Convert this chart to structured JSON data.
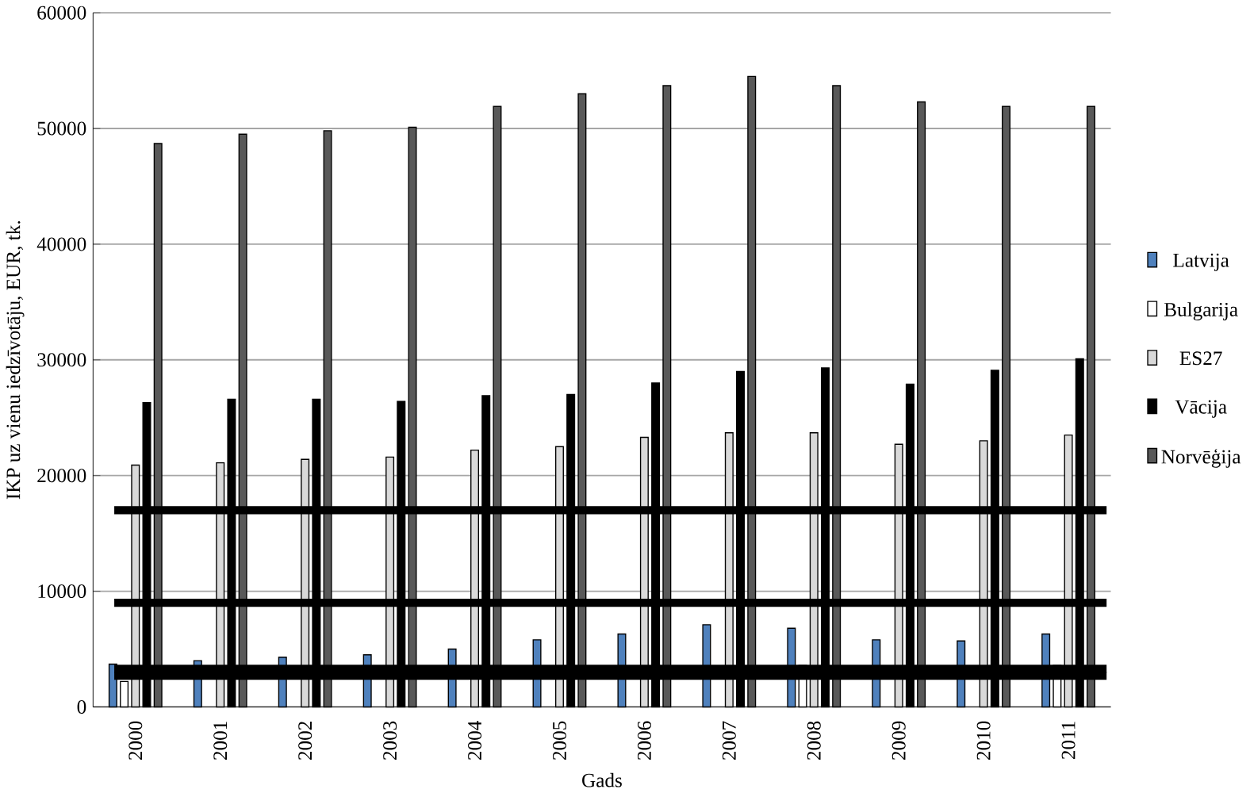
{
  "chart_data": {
    "type": "bar",
    "xlabel": "Gads",
    "ylabel": "IKP uz vienu iedzīvotāju,  EUR, tk.",
    "categories": [
      "2000",
      "2001",
      "2002",
      "2003",
      "2004",
      "2005",
      "2006",
      "2007",
      "2008",
      "2009",
      "2010",
      "2011"
    ],
    "series": [
      {
        "name": "Latvija",
        "color": "#4f81bd",
        "values": [
          3700,
          4000,
          4300,
          4500,
          5000,
          5800,
          6300,
          7100,
          6800,
          5800,
          5700,
          6300
        ]
      },
      {
        "name": "Bulgarija",
        "color": "#ffffff",
        "values": [
          2200,
          null,
          null,
          null,
          null,
          null,
          null,
          null,
          3600,
          null,
          null,
          3600
        ]
      },
      {
        "name": "ES27",
        "color": "#d9d9d9",
        "values": [
          20900,
          21100,
          21400,
          21600,
          22200,
          22500,
          23300,
          23700,
          23700,
          22700,
          23000,
          23500
        ]
      },
      {
        "name": "Vācija",
        "color": "#000000",
        "values": [
          26300,
          26600,
          26600,
          26400,
          26900,
          27000,
          28000,
          29000,
          29300,
          27900,
          29100,
          30100
        ]
      },
      {
        "name": "Norvēģija",
        "color": "#595959",
        "values": [
          48700,
          49500,
          49800,
          50100,
          51900,
          53000,
          53700,
          54500,
          53700,
          52300,
          51900,
          51900
        ]
      }
    ],
    "ylim": [
      0,
      60000
    ],
    "yticks": [
      0,
      10000,
      20000,
      30000,
      40000,
      50000,
      60000
    ],
    "grid": "y",
    "legend": "right",
    "ref_lines": [
      {
        "axis": "y",
        "value": 17000,
        "color": "#000000"
      },
      {
        "axis": "y",
        "value": 9000,
        "color": "#000000"
      },
      {
        "axis": "y",
        "value": 3300,
        "color": "#000000"
      },
      {
        "axis": "y",
        "value": 2700,
        "color": "#000000"
      }
    ]
  }
}
